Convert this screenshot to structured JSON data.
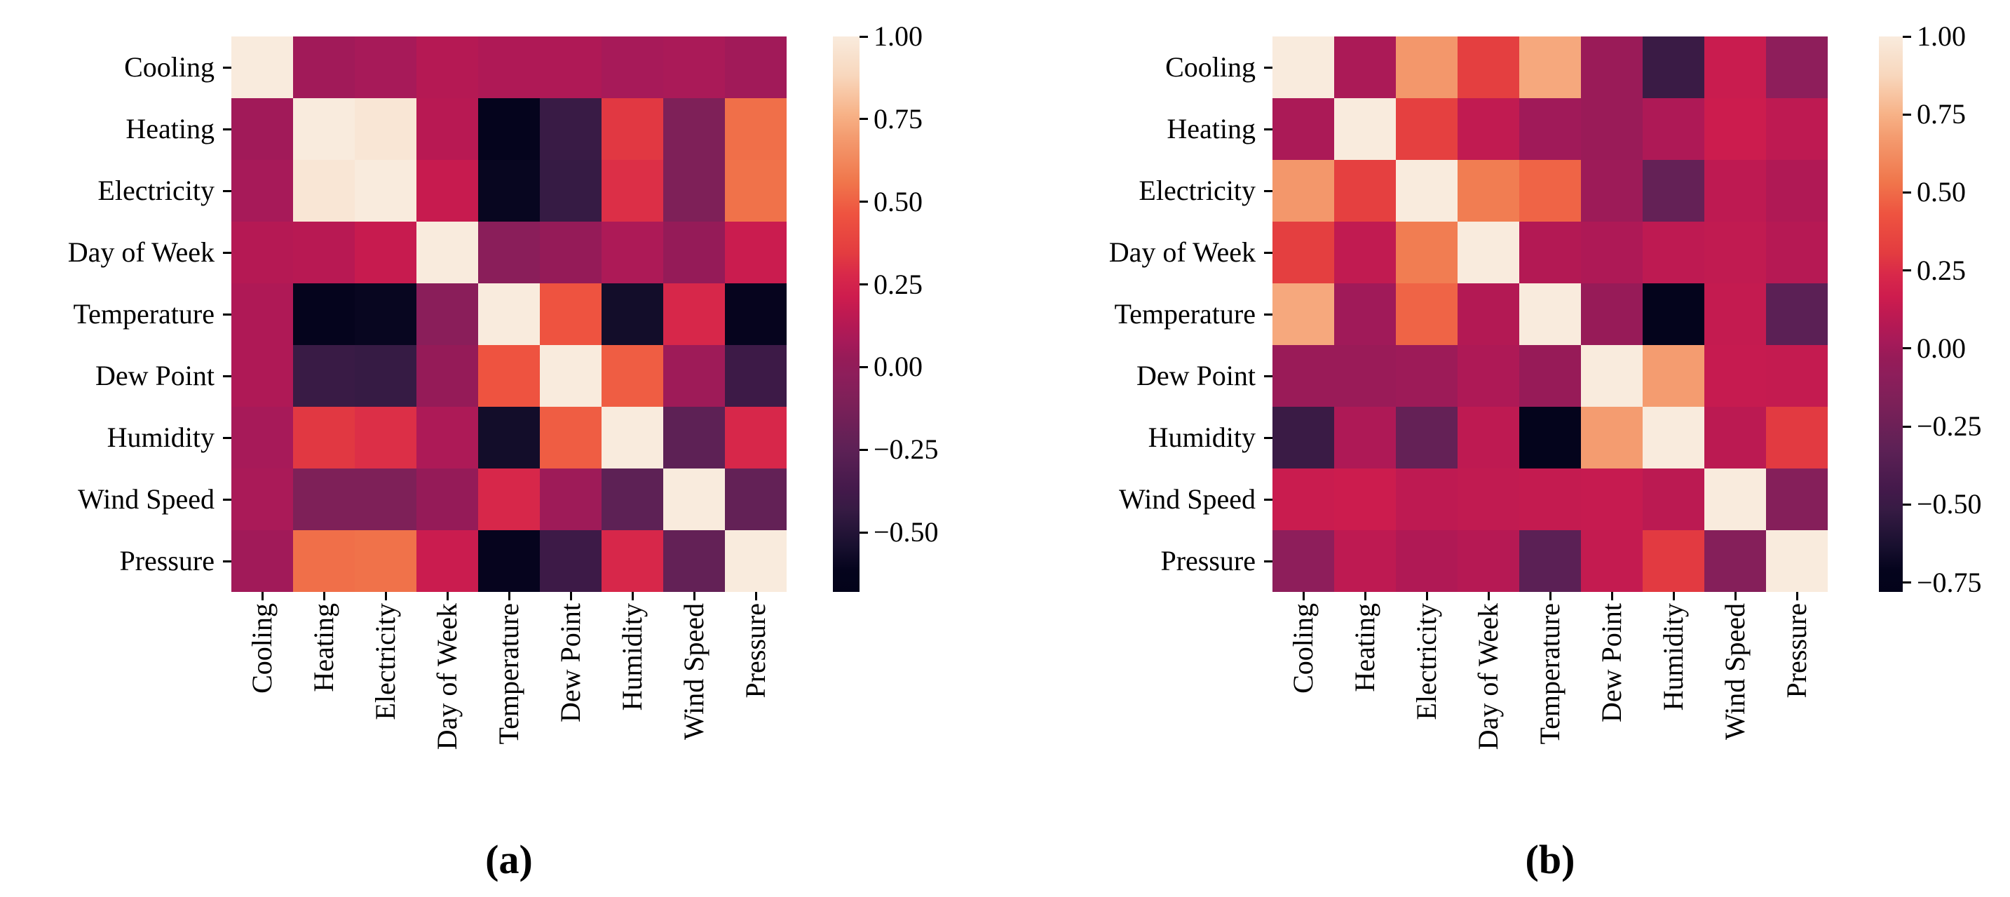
{
  "variables": [
    "Cooling",
    "Heating",
    "Electricity",
    "Day of Week",
    "Temperature",
    "Dew Point",
    "Humidity",
    "Wind Speed",
    "Pressure"
  ],
  "colormap_stops": [
    [
      0.0,
      "#03031a"
    ],
    [
      0.04,
      "#05041d"
    ],
    [
      0.08,
      "#170f2e"
    ],
    [
      0.15,
      "#371b44"
    ],
    [
      0.18,
      "#42194a"
    ],
    [
      0.26,
      "#5e2156"
    ],
    [
      0.34,
      "#7c2058"
    ],
    [
      0.39,
      "#8d1e5b"
    ],
    [
      0.42,
      "#961b58"
    ],
    [
      0.45,
      "#a61a59"
    ],
    [
      0.48,
      "#b41954"
    ],
    [
      0.53,
      "#cd1c4e"
    ],
    [
      0.57,
      "#d8284a"
    ],
    [
      0.61,
      "#e33c40"
    ],
    [
      0.68,
      "#ee5340"
    ],
    [
      0.74,
      "#f0774c"
    ],
    [
      0.82,
      "#f49c70"
    ],
    [
      0.86,
      "#f7b287"
    ],
    [
      0.93,
      "#f8d7bd"
    ],
    [
      1.0,
      "#f9ebdd"
    ]
  ],
  "chart_data": [
    {
      "type": "heatmap",
      "caption": "(a)",
      "categories": [
        "Cooling",
        "Heating",
        "Electricity",
        "Day of Week",
        "Temperature",
        "Dew Point",
        "Humidity",
        "Wind Speed",
        "Pressure"
      ],
      "matrix": [
        [
          1.0,
          0.06,
          0.08,
          0.13,
          0.11,
          0.11,
          0.08,
          0.09,
          0.06
        ],
        [
          0.06,
          1.0,
          0.97,
          0.14,
          -0.62,
          -0.42,
          0.33,
          -0.1,
          0.54
        ],
        [
          0.08,
          0.97,
          1.0,
          0.19,
          -0.6,
          -0.43,
          0.3,
          -0.1,
          0.55
        ],
        [
          0.13,
          0.14,
          0.19,
          1.0,
          -0.04,
          0.02,
          0.1,
          0.02,
          0.2
        ],
        [
          0.11,
          -0.62,
          -0.6,
          -0.04,
          1.0,
          0.46,
          -0.56,
          0.27,
          -0.61
        ],
        [
          0.11,
          -0.42,
          -0.43,
          0.02,
          0.46,
          1.0,
          0.49,
          0.05,
          -0.4
        ],
        [
          0.08,
          0.33,
          0.3,
          0.1,
          -0.56,
          0.49,
          1.0,
          -0.25,
          0.27
        ],
        [
          0.09,
          -0.1,
          -0.1,
          0.02,
          0.27,
          0.05,
          -0.25,
          1.0,
          -0.22
        ],
        [
          0.06,
          0.54,
          0.55,
          0.2,
          -0.61,
          -0.4,
          0.27,
          -0.22,
          1.0
        ]
      ],
      "vmin": -0.68,
      "vmax": 1.0,
      "colorbar_ticks": [
        1.0,
        0.75,
        0.5,
        0.25,
        0.0,
        -0.25,
        -0.5
      ],
      "legend_position": "right",
      "grid": false
    },
    {
      "type": "heatmap",
      "caption": "(b)",
      "categories": [
        "Cooling",
        "Heating",
        "Electricity",
        "Day of Week",
        "Temperature",
        "Dew Point",
        "Humidity",
        "Wind Speed",
        "Pressure"
      ],
      "matrix": [
        [
          1.0,
          0.04,
          0.66,
          0.32,
          0.72,
          -0.02,
          -0.5,
          0.15,
          -0.08
        ],
        [
          0.04,
          1.0,
          0.33,
          0.12,
          0.0,
          -0.02,
          0.05,
          0.16,
          0.11
        ],
        [
          0.66,
          0.33,
          1.0,
          0.56,
          0.48,
          -0.01,
          -0.29,
          0.11,
          0.06
        ],
        [
          0.32,
          0.12,
          0.56,
          1.0,
          0.07,
          0.05,
          0.11,
          0.12,
          0.08
        ],
        [
          0.72,
          0.0,
          0.48,
          0.07,
          1.0,
          -0.03,
          -0.74,
          0.13,
          -0.33
        ],
        [
          -0.02,
          -0.02,
          -0.01,
          0.05,
          -0.03,
          1.0,
          0.68,
          0.14,
          0.13
        ],
        [
          -0.5,
          0.05,
          -0.29,
          0.11,
          -0.74,
          0.68,
          1.0,
          0.1,
          0.3
        ],
        [
          0.15,
          0.16,
          0.11,
          0.12,
          0.13,
          0.14,
          0.1,
          1.0,
          -0.13
        ],
        [
          -0.08,
          0.11,
          0.06,
          0.08,
          -0.33,
          0.13,
          0.3,
          -0.13,
          1.0
        ]
      ],
      "vmin": -0.78,
      "vmax": 1.0,
      "colorbar_ticks": [
        1.0,
        0.75,
        0.5,
        0.25,
        0.0,
        -0.25,
        -0.5,
        -0.75
      ],
      "legend_position": "right",
      "grid": false
    }
  ]
}
